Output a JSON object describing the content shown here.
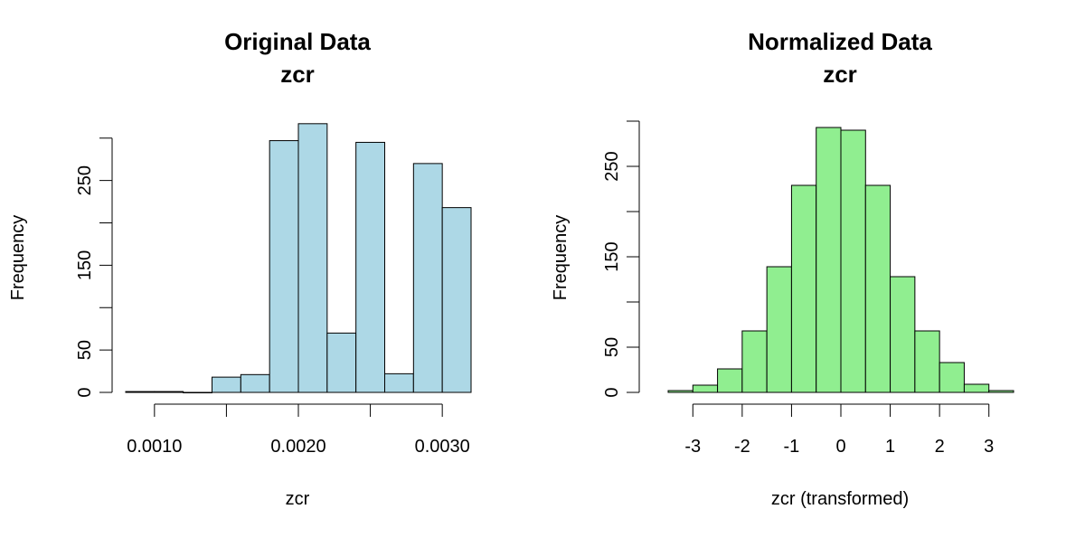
{
  "chart_data": [
    {
      "type": "bar",
      "title": "Original Data",
      "subtitle": "zcr",
      "xlabel": "zcr",
      "ylabel": "Frequency",
      "bar_color": "#add8e6",
      "edge_color": "#000000",
      "xlim": [
        0.0008,
        0.0032
      ],
      "ylim": [
        0,
        320
      ],
      "x_ticks": [
        0.001,
        0.0015,
        0.002,
        0.0025,
        0.003
      ],
      "x_tick_labels": [
        "0.0010",
        "",
        "0.0020",
        "",
        "0.0030"
      ],
      "y_ticks": [
        0,
        50,
        100,
        150,
        200,
        250,
        300
      ],
      "y_tick_labels": [
        "0",
        "50",
        "",
        "150",
        "",
        "250",
        ""
      ],
      "bins": [
        {
          "x0": 0.0008,
          "x1": 0.001,
          "count": 1
        },
        {
          "x0": 0.001,
          "x1": 0.0012,
          "count": 1
        },
        {
          "x0": 0.0012,
          "x1": 0.0014,
          "count": 0
        },
        {
          "x0": 0.0014,
          "x1": 0.0016,
          "count": 18
        },
        {
          "x0": 0.0016,
          "x1": 0.0018,
          "count": 21
        },
        {
          "x0": 0.0018,
          "x1": 0.002,
          "count": 297
        },
        {
          "x0": 0.002,
          "x1": 0.0022,
          "count": 317
        },
        {
          "x0": 0.0022,
          "x1": 0.0024,
          "count": 70
        },
        {
          "x0": 0.0024,
          "x1": 0.0026,
          "count": 295
        },
        {
          "x0": 0.0026,
          "x1": 0.0028,
          "count": 22
        },
        {
          "x0": 0.0028,
          "x1": 0.003,
          "count": 270
        },
        {
          "x0": 0.003,
          "x1": 0.0032,
          "count": 218
        }
      ]
    },
    {
      "type": "bar",
      "title": "Normalized Data",
      "subtitle": "zcr",
      "xlabel": "zcr (transformed)",
      "ylabel": "Frequency",
      "bar_color": "#90ee90",
      "edge_color": "#000000",
      "xlim": [
        -3.5,
        3.5
      ],
      "ylim": [
        0,
        300
      ],
      "x_ticks": [
        -3,
        -2,
        -1,
        0,
        1,
        2,
        3
      ],
      "x_tick_labels": [
        "-3",
        "-2",
        "-1",
        "0",
        "1",
        "2",
        "3"
      ],
      "y_ticks": [
        0,
        50,
        100,
        150,
        200,
        250,
        300
      ],
      "y_tick_labels": [
        "0",
        "50",
        "",
        "150",
        "",
        "250",
        ""
      ],
      "bins": [
        {
          "x0": -3.5,
          "x1": -3.0,
          "count": 2
        },
        {
          "x0": -3.0,
          "x1": -2.5,
          "count": 8
        },
        {
          "x0": -2.5,
          "x1": -2.0,
          "count": 26
        },
        {
          "x0": -2.0,
          "x1": -1.5,
          "count": 68
        },
        {
          "x0": -1.5,
          "x1": -1.0,
          "count": 139
        },
        {
          "x0": -1.0,
          "x1": -0.5,
          "count": 229
        },
        {
          "x0": -0.5,
          "x1": 0.0,
          "count": 293
        },
        {
          "x0": 0.0,
          "x1": 0.5,
          "count": 290
        },
        {
          "x0": 0.5,
          "x1": 1.0,
          "count": 229
        },
        {
          "x0": 1.0,
          "x1": 1.5,
          "count": 128
        },
        {
          "x0": 1.5,
          "x1": 2.0,
          "count": 68
        },
        {
          "x0": 2.0,
          "x1": 2.5,
          "count": 33
        },
        {
          "x0": 2.5,
          "x1": 3.0,
          "count": 9
        },
        {
          "x0": 3.0,
          "x1": 3.5,
          "count": 2
        }
      ]
    }
  ]
}
